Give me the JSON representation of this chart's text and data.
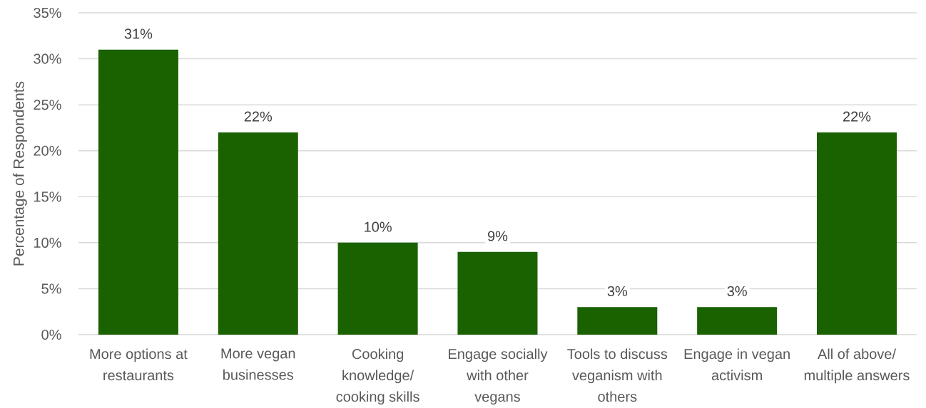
{
  "chart_data": {
    "type": "bar",
    "ylabel": "Percentage of Respondents",
    "categories": [
      "More options at restaurants",
      "More vegan businesses",
      "Cooking knowledge/ cooking skills",
      "Engage socially with other vegans",
      "Tools to discuss veganism with others",
      "Engage in vegan activism",
      "All of above/ multiple answers"
    ],
    "values": [
      31,
      22,
      10,
      9,
      3,
      3,
      22
    ],
    "value_labels": [
      "31%",
      "22%",
      "10%",
      "9%",
      "3%",
      "3%",
      "22%"
    ],
    "color": "#1a6100",
    "ylim": [
      0,
      35
    ],
    "yticks": [
      {
        "value": 0,
        "label": "0%"
      },
      {
        "value": 5,
        "label": "5%"
      },
      {
        "value": 10,
        "label": "10%"
      },
      {
        "value": 15,
        "label": "15%"
      },
      {
        "value": 20,
        "label": "20%"
      },
      {
        "value": 25,
        "label": "25%"
      },
      {
        "value": 30,
        "label": "30%"
      },
      {
        "value": 35,
        "label": "35%"
      }
    ],
    "grid": "y"
  }
}
